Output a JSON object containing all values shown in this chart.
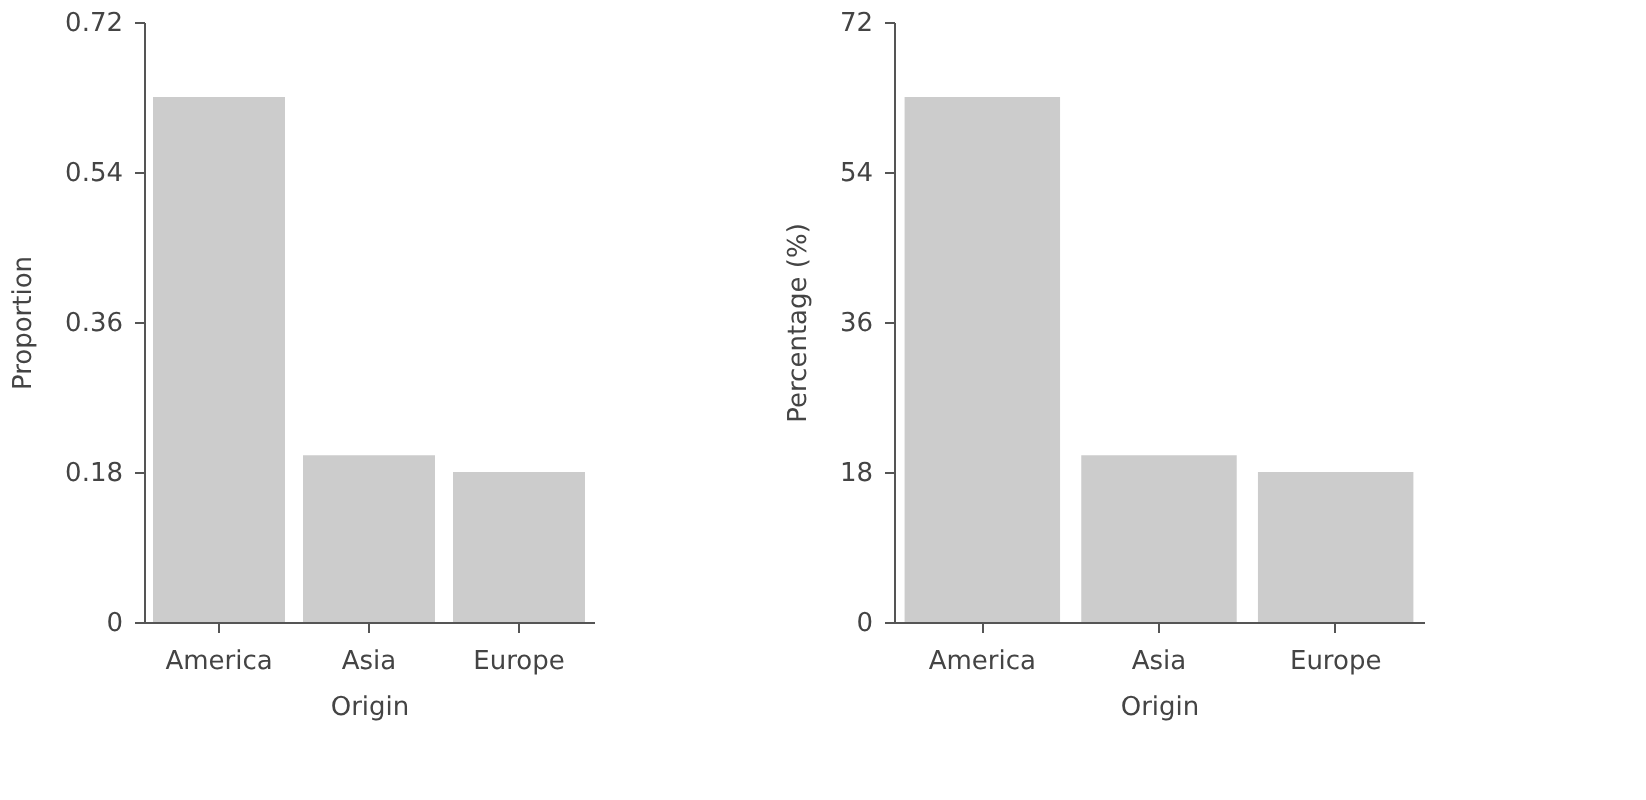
{
  "chart_data": [
    {
      "type": "bar",
      "xlabel": "Origin",
      "ylabel": "Proportion",
      "categories": [
        "America",
        "Asia",
        "Europe"
      ],
      "values": [
        0.63,
        0.2,
        0.18
      ],
      "color": "#cccccc",
      "ylim": [
        0,
        0.72
      ],
      "yticks": [
        0,
        0.18,
        0.36,
        0.54,
        0.72
      ],
      "grid": false
    },
    {
      "type": "bar",
      "xlabel": "Origin",
      "ylabel": "Percentage (%)",
      "categories": [
        "America",
        "Asia",
        "Europe"
      ],
      "values": [
        63,
        20,
        18
      ],
      "color": "#cccccc",
      "ylim": [
        0,
        72
      ],
      "yticks": [
        0,
        18,
        36,
        54,
        72
      ],
      "grid": false
    }
  ]
}
